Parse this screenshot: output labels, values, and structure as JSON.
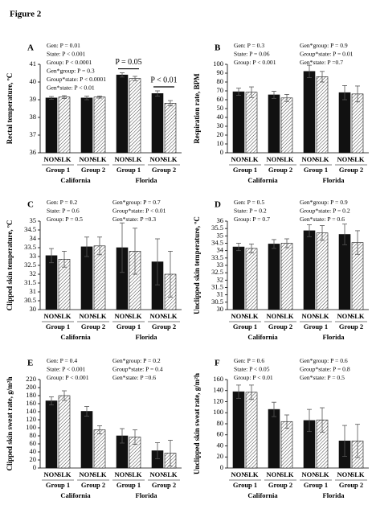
{
  "title": "Figure 2",
  "chart_data": [
    {
      "type": "bar",
      "panel": "A",
      "ylabel": "Rectal temperature, ºC",
      "categories": [
        "NON",
        "SLK",
        "NON",
        "SLK",
        "NON",
        "SLK",
        "NON",
        "SLK"
      ],
      "groups": [
        "Group 1",
        "Group 2",
        "Group 1",
        "Group 2"
      ],
      "states": [
        "California",
        "Florida"
      ],
      "values": [
        39.1,
        39.15,
        39.1,
        39.15,
        40.4,
        40.2,
        39.35,
        38.8
      ],
      "errors": [
        0.08,
        0.08,
        0.1,
        0.06,
        0.12,
        0.12,
        0.15,
        0.15
      ],
      "colors": [
        "#111111",
        "#444444"
      ],
      "ylim": [
        36,
        41
      ],
      "yticks": [
        36,
        37,
        38,
        39,
        40,
        41
      ],
      "stats": [
        [
          "Gen: P = 0.01",
          "State: P < 0.001",
          "Group: P < 0.0001",
          "Gen*group: P = 0.3",
          "Group*state: P < 0.0001",
          "Gen*state: P < 0.01"
        ]
      ],
      "pair_notes": [
        "P = 0.05",
        "P < 0.01"
      ]
    },
    {
      "type": "bar",
      "panel": "B",
      "ylabel": "Respiration rate, BPM",
      "categories": [
        "NON",
        "SLK",
        "NON",
        "SLK",
        "NON",
        "SLK",
        "NON",
        "SLK"
      ],
      "groups": [
        "Group 1",
        "Group 2",
        "Group 1",
        "Group 2"
      ],
      "states": [
        "California",
        "Florida"
      ],
      "values": [
        69,
        68.5,
        65.5,
        62,
        92,
        86,
        68,
        66.5
      ],
      "errors": [
        4,
        6,
        4,
        4,
        7,
        6,
        8,
        9
      ],
      "colors": [
        "#111111",
        "#444444"
      ],
      "ylim": [
        0,
        100
      ],
      "yticks": [
        0,
        10,
        20,
        30,
        40,
        50,
        60,
        70,
        80,
        90,
        100
      ],
      "stats": [
        [
          "Gen: P = 0.3",
          "State: P = 0.06",
          "Group: P < 0.001"
        ],
        [
          "Gen*group: P = 0.9",
          "Group*state: P = 0.01",
          "Gen*state: P =0.7"
        ]
      ]
    },
    {
      "type": "bar",
      "panel": "C",
      "ylabel": "Clipped skin temperature, ºC",
      "categories": [
        "NON",
        "SLK",
        "NON",
        "SLK",
        "NON",
        "SLK",
        "NON",
        "SLK"
      ],
      "groups": [
        "Group 1",
        "Group 2",
        "Group 1",
        "Group 2"
      ],
      "states": [
        "California",
        "Florida"
      ],
      "values": [
        33.05,
        32.85,
        33.55,
        33.6,
        33.5,
        33.3,
        32.7,
        32.0
      ],
      "errors": [
        0.4,
        0.45,
        0.55,
        0.5,
        1.4,
        1.3,
        1.3,
        1.3
      ],
      "colors": [
        "#111111",
        "#444444"
      ],
      "ylim": [
        30,
        35
      ],
      "yticks": [
        30,
        30.5,
        31,
        31.5,
        32,
        32.5,
        33,
        33.5,
        34,
        34.5,
        35
      ],
      "stats": [
        [
          "Gen: P = 0.2",
          "State: P = 0.6",
          "Group: P = 0.5"
        ],
        [
          "Gen*group: P = 0.7",
          "Group*state: P < 0.01",
          "Gen*state: P =0.3"
        ]
      ]
    },
    {
      "type": "bar",
      "panel": "D",
      "ylabel": "Unclipped skin temperature, ºC",
      "categories": [
        "NON",
        "SLK",
        "NON",
        "SLK",
        "NON",
        "SLK",
        "NON",
        "SLK"
      ],
      "groups": [
        "Group 1",
        "Group 2",
        "Group 1",
        "Group 2"
      ],
      "states": [
        "California",
        "Florida"
      ],
      "values": [
        34.25,
        34.15,
        34.45,
        34.5,
        35.35,
        35.2,
        35.1,
        34.55
      ],
      "errors": [
        0.25,
        0.3,
        0.3,
        0.3,
        0.4,
        0.5,
        0.7,
        0.8
      ],
      "colors": [
        "#111111",
        "#444444"
      ],
      "ylim": [
        30,
        36
      ],
      "yticks": [
        30,
        30.5,
        31,
        31.5,
        32,
        32.5,
        33,
        33.5,
        34,
        34.5,
        35,
        35.5,
        36
      ],
      "stats": [
        [
          "Gen: P = 0.5",
          "State: P = 0.2",
          "Group: P = 0.7"
        ],
        [
          "Gen*group: P = 0.9",
          "Group*state: P = 0.2",
          "Gen*state: P = 0.6"
        ]
      ]
    },
    {
      "type": "bar",
      "panel": "E",
      "ylabel": "Clipped skin sweat rate, g/m²h",
      "categories": [
        "NON",
        "SLK",
        "NON",
        "SLK",
        "NON",
        "SLK",
        "NON",
        "SLK"
      ],
      "groups": [
        "Group 1",
        "Group 2",
        "Group 1",
        "Group 2"
      ],
      "states": [
        "California",
        "Florida"
      ],
      "values": [
        167,
        180,
        141,
        95,
        80,
        77,
        43,
        37
      ],
      "errors": [
        10,
        12,
        12,
        10,
        18,
        18,
        20,
        32
      ],
      "colors": [
        "#111111",
        "#444444"
      ],
      "ylim": [
        0,
        220
      ],
      "yticks": [
        0,
        20,
        40,
        60,
        80,
        100,
        120,
        140,
        160,
        180,
        200,
        220
      ],
      "stats": [
        [
          "Gen: P = 0.4",
          "State: P < 0.001",
          "Group: P < 0.001"
        ],
        [
          "Gen*group: P = 0.2",
          "Group*state: P = 0.4",
          "Gen*state: P =0.6"
        ]
      ]
    },
    {
      "type": "bar",
      "panel": "F",
      "ylabel": "Unclipped skin sweat rate, g/m²h",
      "categories": [
        "NON",
        "SLK",
        "NON",
        "SLK",
        "NON",
        "SLK",
        "NON",
        "SLK"
      ],
      "groups": [
        "Group 1",
        "Group 2",
        "Group 1",
        "Group 2"
      ],
      "states": [
        "California",
        "Florida"
      ],
      "values": [
        138,
        137,
        106,
        84,
        86,
        87,
        49,
        49
      ],
      "errors": [
        12,
        13,
        13,
        12,
        20,
        22,
        28,
        30
      ],
      "colors": [
        "#111111",
        "#444444"
      ],
      "ylim": [
        0,
        160
      ],
      "yticks": [
        0,
        20,
        40,
        60,
        80,
        100,
        120,
        140,
        160
      ],
      "stats": [
        [
          "Gen: P = 0.6",
          "State: P < 0.05",
          "Group: P < 0.01"
        ],
        [
          "Gen*group: P = 0.6",
          "Group*state: P = 0.8",
          "Gen*state: P = 0.5"
        ]
      ]
    }
  ]
}
